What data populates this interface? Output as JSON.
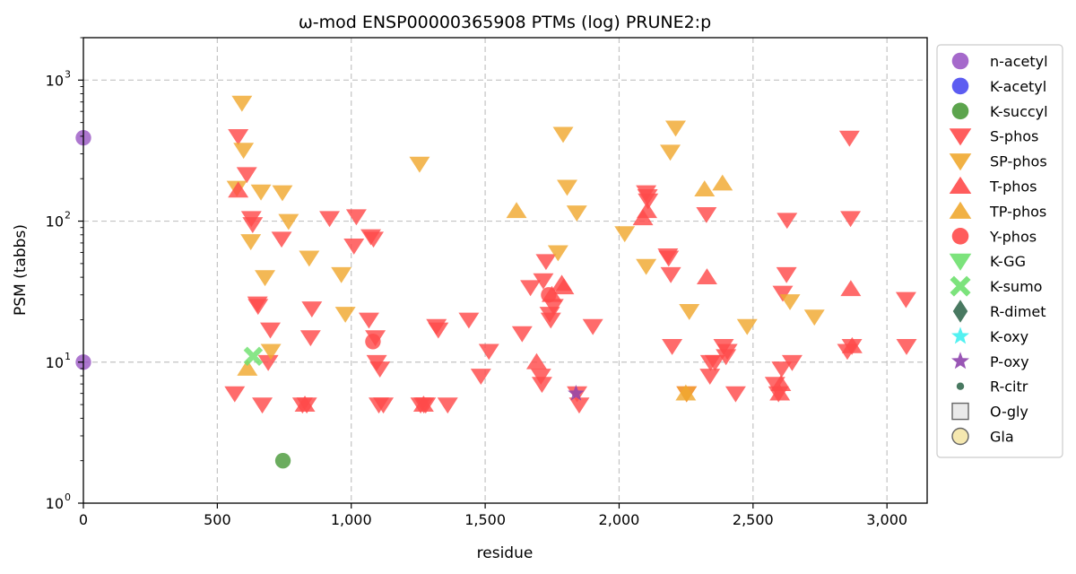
{
  "chart_data": {
    "type": "scatter",
    "title": "ω-mod ENSP00000365908 PTMs (log) PRUNE2:p",
    "xlabel": "residue",
    "ylabel": "PSM (tabbs)",
    "xlim": [
      0,
      3150
    ],
    "ylim": [
      1,
      2000
    ],
    "yscale": "log",
    "grid": true,
    "legend_position": "outside-right",
    "x_ticks": [
      0,
      500,
      1000,
      1500,
      2000,
      2500,
      3000
    ],
    "x_tick_labels": [
      "0",
      "500",
      "1,000",
      "1,500",
      "2,000",
      "2,500",
      "3,000"
    ],
    "y_ticks": [
      1,
      10,
      100,
      1000
    ],
    "y_tick_labels": [
      "10",
      "10",
      "10",
      "10"
    ],
    "y_tick_exponents": [
      "0",
      "1",
      "2",
      "3"
    ],
    "series": [
      {
        "name": "n-acetyl",
        "marker": "circle",
        "color": "#9b59c5",
        "points": [
          [
            0,
            390
          ],
          [
            0,
            10
          ]
        ]
      },
      {
        "name": "K-acetyl",
        "marker": "circle",
        "color": "#4a4af0",
        "points": []
      },
      {
        "name": "K-succyl",
        "marker": "circle",
        "color": "#4a9a3a",
        "points": [
          [
            745,
            2
          ]
        ]
      },
      {
        "name": "S-phos",
        "marker": "triangle-down",
        "color": "#ff4a4a",
        "points": [
          [
            565,
            6
          ],
          [
            578,
            400
          ],
          [
            610,
            215
          ],
          [
            627,
            105
          ],
          [
            632,
            95
          ],
          [
            650,
            26
          ],
          [
            652,
            25
          ],
          [
            668,
            5
          ],
          [
            690,
            10
          ],
          [
            698,
            17
          ],
          [
            740,
            75
          ],
          [
            818,
            5
          ],
          [
            834,
            5
          ],
          [
            848,
            15
          ],
          [
            853,
            24
          ],
          [
            919,
            105
          ],
          [
            1010,
            67
          ],
          [
            1019,
            108
          ],
          [
            1066,
            20
          ],
          [
            1073,
            78
          ],
          [
            1083,
            75
          ],
          [
            1090,
            15
          ],
          [
            1095,
            10
          ],
          [
            1103,
            5
          ],
          [
            1107,
            9
          ],
          [
            1120,
            5
          ],
          [
            1259,
            5
          ],
          [
            1271,
            5
          ],
          [
            1278,
            5
          ],
          [
            1318,
            18
          ],
          [
            1325,
            17
          ],
          [
            1360,
            5
          ],
          [
            1439,
            20
          ],
          [
            1484,
            8
          ],
          [
            1514,
            12
          ],
          [
            1638,
            16
          ],
          [
            1669,
            34
          ],
          [
            1708,
            8
          ],
          [
            1712,
            7
          ],
          [
            1717,
            38
          ],
          [
            1727,
            52
          ],
          [
            1741,
            22
          ],
          [
            1745,
            20
          ],
          [
            1755,
            25
          ],
          [
            1843,
            6
          ],
          [
            1851,
            5
          ],
          [
            1902,
            18
          ],
          [
            2101,
            160
          ],
          [
            2108,
            140
          ],
          [
            2106,
            150
          ],
          [
            2182,
            57
          ],
          [
            2185,
            55
          ],
          [
            2193,
            42
          ],
          [
            2198,
            13
          ],
          [
            2252,
            6
          ],
          [
            2326,
            112
          ],
          [
            2339,
            8
          ],
          [
            2341,
            10
          ],
          [
            2358,
            10
          ],
          [
            2390,
            13
          ],
          [
            2399,
            11
          ],
          [
            2404,
            12
          ],
          [
            2435,
            6
          ],
          [
            2582,
            7
          ],
          [
            2595,
            6
          ],
          [
            2607,
            9
          ],
          [
            2611,
            31
          ],
          [
            2625,
            42
          ],
          [
            2627,
            102
          ],
          [
            2646,
            10
          ],
          [
            2852,
            12
          ],
          [
            2860,
            390
          ],
          [
            2864,
            105
          ],
          [
            2869,
            13
          ],
          [
            3071,
            28
          ],
          [
            3073,
            13
          ]
        ]
      },
      {
        "name": "SP-phos",
        "marker": "triangle-down",
        "color": "#f0a830",
        "points": [
          [
            573,
            172
          ],
          [
            592,
            690
          ],
          [
            598,
            320
          ],
          [
            625,
            72
          ],
          [
            663,
            162
          ],
          [
            678,
            40
          ],
          [
            700,
            12
          ],
          [
            743,
            160
          ],
          [
            766,
            100
          ],
          [
            843,
            55
          ],
          [
            963,
            42
          ],
          [
            978,
            22
          ],
          [
            1255,
            255
          ],
          [
            1772,
            60
          ],
          [
            1791,
            415
          ],
          [
            1806,
            175
          ],
          [
            1842,
            115
          ],
          [
            2021,
            82
          ],
          [
            2101,
            48
          ],
          [
            2191,
            310
          ],
          [
            2211,
            460
          ],
          [
            2252,
            6
          ],
          [
            2262,
            23
          ],
          [
            2478,
            18
          ],
          [
            2638,
            27
          ],
          [
            2729,
            21
          ]
        ]
      },
      {
        "name": "T-phos",
        "marker": "triangle-up",
        "color": "#ff4a4a",
        "points": [
          [
            578,
            165
          ],
          [
            827,
            5
          ],
          [
            1270,
            5
          ],
          [
            1692,
            10
          ],
          [
            1749,
            30
          ],
          [
            1786,
            36
          ],
          [
            1794,
            34
          ],
          [
            2089,
            105
          ],
          [
            2104,
            118
          ],
          [
            2328,
            40
          ],
          [
            2600,
            6
          ],
          [
            2604,
            7
          ],
          [
            2865,
            33
          ],
          [
            2870,
            13
          ]
        ]
      },
      {
        "name": "TP-phos",
        "marker": "triangle-up",
        "color": "#f0a830",
        "points": [
          [
            612,
            9
          ],
          [
            1617,
            118
          ],
          [
            2249,
            6
          ],
          [
            2319,
            168
          ],
          [
            2386,
            185
          ]
        ]
      },
      {
        "name": "Y-phos",
        "marker": "circle",
        "color": "#ff4a4a",
        "points": [
          [
            1081,
            14
          ],
          [
            1737,
            30
          ]
        ]
      },
      {
        "name": "K-GG",
        "marker": "triangle-down",
        "color": "#6ee06e",
        "points": []
      },
      {
        "name": "K-sumo",
        "marker": "x-thick",
        "color": "#6ee06e",
        "points": [
          [
            634,
            11
          ]
        ]
      },
      {
        "name": "R-dimet",
        "marker": "diamond",
        "color": "#356a50",
        "points": []
      },
      {
        "name": "K-oxy",
        "marker": "star",
        "color": "#40f0f0",
        "points": []
      },
      {
        "name": "P-oxy",
        "marker": "star",
        "color": "#8e44ad",
        "points": [
          [
            1839,
            6
          ]
        ]
      },
      {
        "name": "R-citr",
        "marker": "small-circle",
        "color": "#356a50",
        "points": []
      },
      {
        "name": "O-gly",
        "marker": "square-open",
        "color": "#e8e8e8",
        "points": []
      },
      {
        "name": "Gla",
        "marker": "circle-open",
        "color": "#f5e6a8",
        "points": []
      }
    ]
  }
}
